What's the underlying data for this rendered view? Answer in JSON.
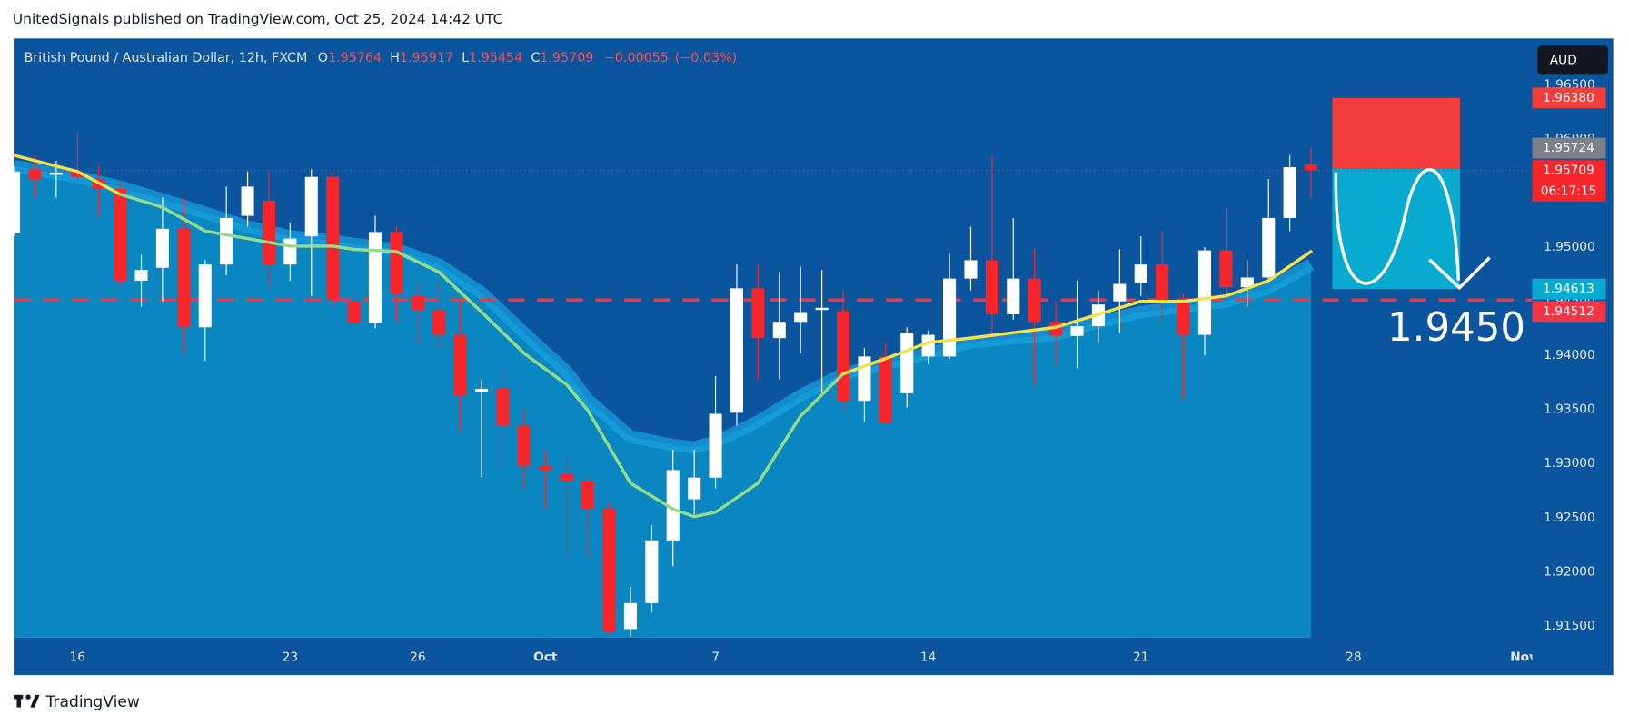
{
  "publisher": "UnitedSignals published on TradingView.com, Oct 25, 2024 14:42 UTC",
  "brand": "TradingView",
  "chart_data": {
    "type": "candlestick",
    "symbol": "British Pound / Australian Dollar, 12h, FXCM",
    "legend_keys": [
      "O",
      "H",
      "L",
      "C"
    ],
    "change": {
      "value": -0.00055,
      "label": "−0.00055"
    },
    "change_pct": "(−0.03%)",
    "currency": "AUD",
    "countdown": "06:17:15",
    "annotation": "1.9450",
    "up_color": "#ffffff",
    "down_color": "#f7262a",
    "open": [
      1.9513,
      1.9572,
      1.9567,
      1.957,
      1.9563,
      1.9554,
      1.9469,
      1.9481,
      1.9517,
      1.9426,
      1.9484,
      1.9529,
      1.9543,
      1.9484,
      1.951,
      1.9565,
      1.945,
      1.943,
      1.9514,
      1.9455,
      1.9442,
      1.9419,
      1.9366,
      1.937,
      1.9335,
      1.9298,
      1.9291,
      1.9284,
      1.9258,
      1.9147,
      1.9171,
      1.9229,
      1.9267,
      1.9287,
      1.9347,
      1.9462,
      1.9416,
      1.9431,
      1.9442,
      1.9441,
      1.9358,
      1.9399,
      1.9365,
      1.9399,
      1.9399,
      1.9471,
      1.9488,
      1.9438,
      1.9471,
      1.9431,
      1.9418,
      1.9427,
      1.945,
      1.9467,
      1.9484,
      1.9448,
      1.9419,
      1.9497,
      1.9463,
      1.9472,
      1.9527,
      1.95764
    ],
    "high": [
      1.9575,
      1.9585,
      1.958,
      1.9606,
      1.9575,
      1.9561,
      1.9493,
      1.9546,
      1.9546,
      1.9488,
      1.9556,
      1.957,
      1.957,
      1.9522,
      1.9572,
      1.957,
      1.946,
      1.9529,
      1.9519,
      1.9469,
      1.9469,
      1.945,
      1.9378,
      1.9388,
      1.9351,
      1.9313,
      1.9306,
      1.9287,
      1.9263,
      1.9186,
      1.9243,
      1.9313,
      1.9313,
      1.9381,
      1.9484,
      1.9484,
      1.9477,
      1.9482,
      1.9479,
      1.946,
      1.9407,
      1.9412,
      1.9426,
      1.9423,
      1.9494,
      1.9519,
      1.9585,
      1.9527,
      1.9498,
      1.945,
      1.9469,
      1.946,
      1.9498,
      1.951,
      1.9515,
      1.9457,
      1.95,
      1.9537,
      1.9488,
      1.9563,
      1.9585,
      1.95917
    ],
    "low": [
      1.951,
      1.9546,
      1.9546,
      1.9561,
      1.9529,
      1.9464,
      1.9445,
      1.945,
      1.9402,
      1.9395,
      1.9474,
      1.9519,
      1.9464,
      1.9469,
      1.9455,
      1.9445,
      1.9423,
      1.9425,
      1.9431,
      1.941,
      1.9407,
      1.933,
      1.9287,
      1.9296,
      1.9277,
      1.9258,
      1.9214,
      1.9214,
      1.9142,
      1.914,
      1.9162,
      1.9205,
      1.9253,
      1.9277,
      1.9335,
      1.9378,
      1.9378,
      1.9402,
      1.9363,
      1.9349,
      1.9339,
      1.9337,
      1.9352,
      1.9392,
      1.9397,
      1.946,
      1.9419,
      1.9433,
      1.9373,
      1.9392,
      1.9388,
      1.9412,
      1.9421,
      1.9455,
      1.9431,
      1.9359,
      1.94,
      1.945,
      1.9445,
      1.9469,
      1.9515,
      1.95454
    ],
    "close": [
      1.957,
      1.9563,
      1.9569,
      1.9565,
      1.9554,
      1.9469,
      1.9479,
      1.9517,
      1.9426,
      1.9484,
      1.9527,
      1.9556,
      1.9484,
      1.9508,
      1.9565,
      1.9452,
      1.943,
      1.9514,
      1.9457,
      1.9442,
      1.9419,
      1.9363,
      1.9369,
      1.9335,
      1.9298,
      1.9294,
      1.9284,
      1.9258,
      1.9145,
      1.9171,
      1.9229,
      1.9294,
      1.9287,
      1.9346,
      1.9462,
      1.9416,
      1.9431,
      1.944,
      1.9444,
      1.9358,
      1.9399,
      1.9338,
      1.9421,
      1.9419,
      1.9471,
      1.9488,
      1.9438,
      1.9471,
      1.9431,
      1.9418,
      1.9427,
      1.9447,
      1.9466,
      1.9484,
      1.945,
      1.9419,
      1.9497,
      1.9463,
      1.9472,
      1.9527,
      1.9574,
      1.95709
    ],
    "ribbon": {
      "color": "#18a2df",
      "area_color": "#0a86c1",
      "x": [
        0,
        3,
        5,
        7,
        9,
        11,
        13,
        15,
        16,
        18,
        20,
        22,
        24,
        26,
        27,
        29,
        31,
        32,
        33,
        35,
        37,
        39,
        41,
        43,
        45,
        47,
        49,
        51,
        53,
        55,
        57,
        59,
        61
      ],
      "values": [
        1.9575,
        1.9565,
        1.9556,
        1.9544,
        1.9532,
        1.9519,
        1.951,
        1.9506,
        1.9503,
        1.9498,
        1.9484,
        1.9458,
        1.9421,
        1.9385,
        1.9359,
        1.9325,
        1.9317,
        1.9315,
        1.932,
        1.9339,
        1.9363,
        1.9383,
        1.9392,
        1.9402,
        1.9412,
        1.9416,
        1.9419,
        1.9431,
        1.944,
        1.9445,
        1.945,
        1.9462,
        1.9484
      ]
    },
    "series": [
      {
        "color": "#f5e14a",
        "x": [
          0,
          3,
          5
        ],
        "values": [
          1.9585,
          1.957,
          1.9549
        ]
      },
      {
        "color": "#93dd8a",
        "x": [
          5,
          7,
          9,
          11,
          13,
          15,
          16,
          18,
          20,
          22,
          24,
          26,
          27,
          29,
          31,
          32,
          33,
          35,
          37,
          39
        ],
        "values": [
          1.9549,
          1.9537,
          1.9515,
          1.9508,
          1.9501,
          1.9501,
          1.9498,
          1.9496,
          1.9477,
          1.944,
          1.9402,
          1.9373,
          1.9349,
          1.9282,
          1.9258,
          1.9251,
          1.9255,
          1.9282,
          1.9344,
          1.9383
        ]
      },
      {
        "color": "#f5e14a",
        "x": [
          39,
          41,
          43,
          45,
          47,
          49,
          51,
          53,
          55,
          57,
          59,
          61
        ],
        "values": [
          1.9383,
          1.9397,
          1.9412,
          1.9416,
          1.9421,
          1.9426,
          1.9438,
          1.945,
          1.945,
          1.9455,
          1.9469,
          1.9496
        ]
      }
    ],
    "position": {
      "x": [
        62,
        68
      ],
      "stop": {
        "value": 1.9638,
        "label": "1.96380"
      },
      "entry": 1.95724,
      "target": 1.94613,
      "stop_color": "#f23d3a",
      "target_color": "#08aacf",
      "entry_color": "#7d8087"
    },
    "level": 1.94512,
    "level_color": "#f23645",
    "xlim": [
      0,
      71.4
    ],
    "xticks": [
      {
        "value": 3,
        "label": "16"
      },
      {
        "value": 13,
        "label": "23"
      },
      {
        "value": 19,
        "label": "26"
      },
      {
        "value": 25,
        "label": "Oct"
      },
      {
        "value": 33,
        "label": "7"
      },
      {
        "value": 43,
        "label": "14"
      },
      {
        "value": 53,
        "label": "21"
      },
      {
        "value": 63,
        "label": "28"
      },
      {
        "value": 71,
        "label": "Nov"
      }
    ],
    "ylim": [
      1.9139,
      1.9693
    ],
    "yticks": [
      {
        "value": 1.915,
        "label": "1.91500"
      },
      {
        "value": 1.92,
        "label": "1.92000"
      },
      {
        "value": 1.925,
        "label": "1.92500"
      },
      {
        "value": 1.93,
        "label": "1.93000"
      },
      {
        "value": 1.935,
        "label": "1.93500"
      },
      {
        "value": 1.94,
        "label": "1.94000"
      },
      {
        "value": 1.945,
        "label": "1.94500"
      },
      {
        "value": 1.95,
        "label": "1.95000"
      },
      {
        "value": 1.955,
        "label": "1.95500"
      },
      {
        "value": 1.96,
        "label": "1.96000"
      },
      {
        "value": 1.965,
        "label": "1.96500"
      }
    ],
    "grid": false
  }
}
